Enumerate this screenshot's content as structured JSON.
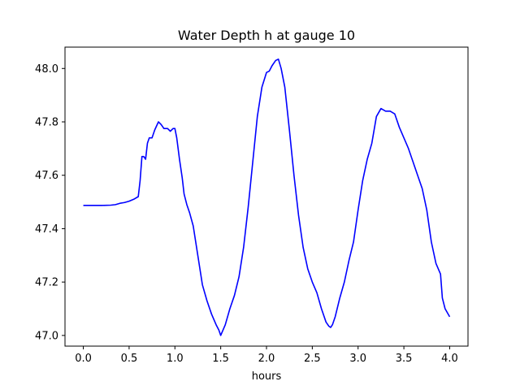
{
  "chart_data": {
    "type": "line",
    "title": "Water Depth h at gauge 10",
    "xlabel": "hours",
    "ylabel": "",
    "xlim": [
      -0.2,
      4.2
    ],
    "ylim": [
      46.96,
      48.08
    ],
    "xticks": [
      0.0,
      0.5,
      1.0,
      1.5,
      2.0,
      2.5,
      3.0,
      3.5,
      4.0
    ],
    "xtick_labels": [
      "0.0",
      "0.5",
      "1.0",
      "1.5",
      "2.0",
      "2.5",
      "3.0",
      "3.5",
      "4.0"
    ],
    "yticks": [
      47.0,
      47.2,
      47.4,
      47.6,
      47.8,
      48.0
    ],
    "ytick_labels": [
      "47.0",
      "47.2",
      "47.4",
      "47.6",
      "47.8",
      "48.0"
    ],
    "grid": false,
    "series": [
      {
        "color": "#0000ff",
        "x": [
          0.0,
          0.1,
          0.2,
          0.3,
          0.35,
          0.4,
          0.45,
          0.5,
          0.55,
          0.6,
          0.62,
          0.64,
          0.66,
          0.68,
          0.7,
          0.72,
          0.75,
          0.78,
          0.82,
          0.85,
          0.88,
          0.92,
          0.95,
          0.98,
          1.0,
          1.02,
          1.05,
          1.08,
          1.1,
          1.13,
          1.16,
          1.2,
          1.25,
          1.3,
          1.35,
          1.4,
          1.45,
          1.48,
          1.5,
          1.55,
          1.6,
          1.65,
          1.7,
          1.75,
          1.8,
          1.85,
          1.9,
          1.95,
          2.0,
          2.03,
          2.06,
          2.1,
          2.13,
          2.16,
          2.2,
          2.25,
          2.3,
          2.35,
          2.4,
          2.45,
          2.5,
          2.55,
          2.6,
          2.65,
          2.68,
          2.7,
          2.72,
          2.75,
          2.8,
          2.85,
          2.9,
          2.95,
          3.0,
          3.05,
          3.1,
          3.15,
          3.2,
          3.25,
          3.3,
          3.35,
          3.4,
          3.45,
          3.5,
          3.55,
          3.6,
          3.65,
          3.7,
          3.75,
          3.8,
          3.85,
          3.9,
          3.92,
          3.95,
          4.0
        ],
        "y": [
          47.487,
          47.487,
          47.487,
          47.488,
          47.49,
          47.495,
          47.498,
          47.503,
          47.51,
          47.52,
          47.58,
          47.67,
          47.67,
          47.66,
          47.72,
          47.74,
          47.74,
          47.77,
          47.8,
          47.79,
          47.775,
          47.775,
          47.765,
          47.775,
          47.775,
          47.74,
          47.66,
          47.59,
          47.53,
          47.49,
          47.46,
          47.41,
          47.3,
          47.19,
          47.13,
          47.08,
          47.04,
          47.02,
          47.0,
          47.04,
          47.1,
          47.15,
          47.22,
          47.33,
          47.48,
          47.65,
          47.82,
          47.93,
          47.985,
          47.99,
          48.01,
          48.03,
          48.035,
          48.0,
          47.93,
          47.77,
          47.6,
          47.45,
          47.33,
          47.25,
          47.2,
          47.16,
          47.1,
          47.05,
          47.035,
          47.03,
          47.04,
          47.07,
          47.14,
          47.2,
          47.28,
          47.35,
          47.47,
          47.58,
          47.66,
          47.72,
          47.82,
          47.85,
          47.84,
          47.84,
          47.83,
          47.78,
          47.74,
          47.7,
          47.65,
          47.6,
          47.55,
          47.47,
          47.35,
          47.27,
          47.23,
          47.14,
          47.1,
          47.07
        ]
      }
    ]
  }
}
